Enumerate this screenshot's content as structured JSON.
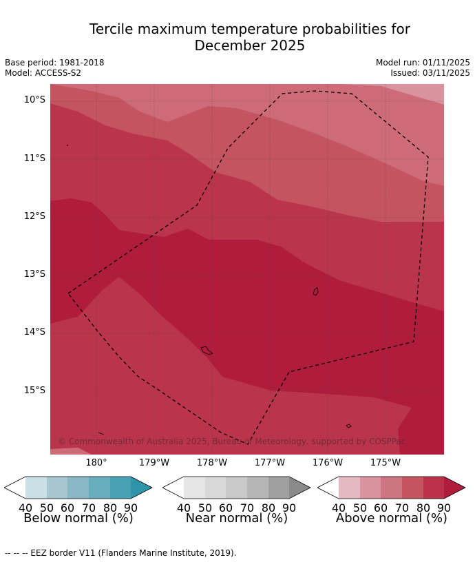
{
  "title_line1": "Tercile maximum temperature probabilities for",
  "title_line2": "December 2025",
  "base_period": "Base period: 1981-2018",
  "model": "Model: ACCESS-S2",
  "model_run": "Model run: 01/11/2025",
  "issued": "Issued: 03/11/2025",
  "lat_labels": [
    "10°S",
    "11°S",
    "12°S",
    "13°S",
    "14°S",
    "15°S"
  ],
  "lon_labels": [
    "180°",
    "179°W",
    "178°W",
    "177°W",
    "176°W",
    "175°W"
  ],
  "copyright": "© Commonwealth of Australia 2025, Bureau of Meteorology, supported by COSPPac",
  "legend": [
    {
      "caption": "Below normal (%)",
      "ticks": [
        "40",
        "50",
        "60",
        "70",
        "80",
        "90"
      ],
      "colors": [
        "#ffffff",
        "#c9e0e7",
        "#a6c7cf",
        "#88b8c5",
        "#6aaebd",
        "#49a2b3",
        "#2f94a8"
      ]
    },
    {
      "caption": "Near normal (%)",
      "ticks": [
        "40",
        "50",
        "60",
        "70",
        "80",
        "90"
      ],
      "colors": [
        "#ffffff",
        "#e6e6e6",
        "#d8d8d8",
        "#c9c9c9",
        "#b6b6b6",
        "#a0a0a0",
        "#8a8a8a"
      ]
    },
    {
      "caption": "Above normal (%)",
      "ticks": [
        "40",
        "50",
        "60",
        "70",
        "80",
        "90"
      ],
      "colors": [
        "#ffffff",
        "#e4b9c1",
        "#d9939e",
        "#cd7580",
        "#c4545f",
        "#b93249",
        "#b01c3c"
      ]
    }
  ],
  "footer": "-- -- -- EEZ border V11 (Flanders Marine Institute, 2019).",
  "colors": {
    "p50": "#d9939e",
    "p60": "#cd6c78",
    "p70": "#c4545f",
    "p80": "#ba344c",
    "p90": "#b01c3c"
  }
}
